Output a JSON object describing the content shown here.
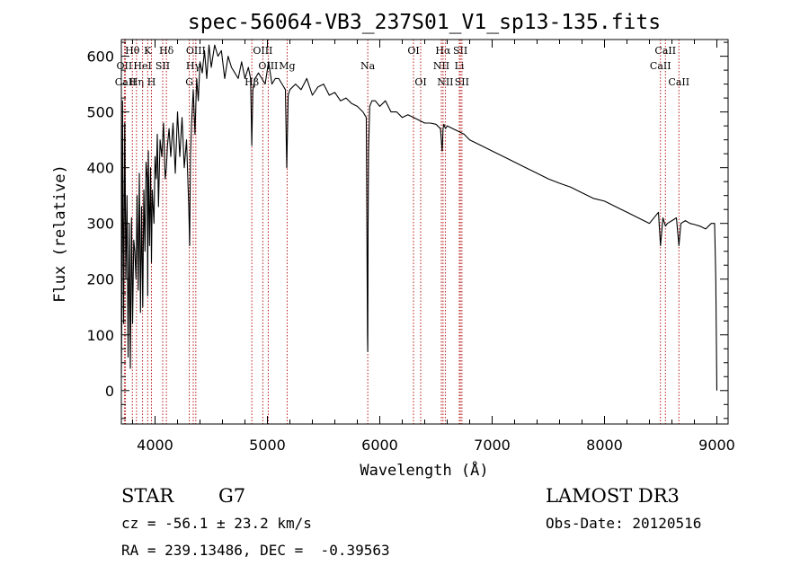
{
  "chart_data": {
    "type": "line",
    "title": "spec-56064-VB3_237S01_V1_sp13-135.fits",
    "xlabel": "Wavelength (Å)",
    "ylabel": "Flux (relative)",
    "xlim": [
      3700,
      9100
    ],
    "ylim": [
      -60,
      630
    ],
    "xticks": [
      4000,
      5000,
      6000,
      7000,
      8000,
      9000
    ],
    "yticks": [
      0,
      100,
      200,
      300,
      400,
      500,
      600
    ],
    "line_color": "#000000",
    "marker_color": "#b00000",
    "series": [
      {
        "name": "spectrum",
        "x": [
          3700,
          3705,
          3710,
          3720,
          3730,
          3740,
          3750,
          3760,
          3770,
          3780,
          3790,
          3800,
          3810,
          3820,
          3830,
          3840,
          3850,
          3860,
          3870,
          3880,
          3890,
          3900,
          3910,
          3920,
          3930,
          3934,
          3940,
          3950,
          3960,
          3968,
          3975,
          3990,
          4000,
          4010,
          4020,
          4030,
          4045,
          4060,
          4075,
          4090,
          4101,
          4110,
          4125,
          4140,
          4160,
          4180,
          4200,
          4220,
          4240,
          4260,
          4280,
          4300,
          4308,
          4315,
          4325,
          4340,
          4355,
          4370,
          4385,
          4400,
          4420,
          4440,
          4460,
          4480,
          4500,
          4530,
          4560,
          4590,
          4620,
          4650,
          4680,
          4710,
          4740,
          4770,
          4800,
          4830,
          4850,
          4861,
          4870,
          4890,
          4920,
          4950,
          4980,
          5010,
          5040,
          5070,
          5100,
          5130,
          5160,
          5172,
          5185,
          5200,
          5250,
          5300,
          5350,
          5400,
          5450,
          5500,
          5550,
          5600,
          5650,
          5700,
          5750,
          5800,
          5850,
          5880,
          5890,
          5893,
          5896,
          5900,
          5910,
          5930,
          5960,
          6000,
          6050,
          6100,
          6150,
          6200,
          6250,
          6300,
          6350,
          6400,
          6450,
          6500,
          6540,
          6555,
          6563,
          6570,
          6585,
          6600,
          6650,
          6700,
          6750,
          6800,
          6900,
          7000,
          7100,
          7200,
          7300,
          7400,
          7500,
          7600,
          7700,
          7800,
          7900,
          8000,
          8100,
          8200,
          8300,
          8400,
          8480,
          8498,
          8520,
          8542,
          8560,
          8600,
          8640,
          8662,
          8680,
          8720,
          8760,
          8800,
          8850,
          8900,
          8950,
          8980,
          8990,
          8995,
          9000
        ],
        "y": [
          30,
          150,
          520,
          120,
          480,
          200,
          350,
          60,
          300,
          40,
          310,
          120,
          270,
          250,
          200,
          350,
          180,
          390,
          140,
          330,
          150,
          360,
          250,
          410,
          380,
          170,
          430,
          260,
          400,
          230,
          360,
          300,
          420,
          380,
          460,
          330,
          450,
          420,
          480,
          380,
          400,
          440,
          470,
          420,
          480,
          390,
          500,
          420,
          490,
          400,
          450,
          330,
          260,
          420,
          480,
          540,
          460,
          560,
          520,
          590,
          570,
          610,
          560,
          620,
          580,
          620,
          600,
          610,
          560,
          600,
          580,
          570,
          560,
          590,
          560,
          580,
          560,
          440,
          540,
          560,
          570,
          560,
          550,
          590,
          550,
          560,
          560,
          550,
          540,
          400,
          530,
          540,
          550,
          540,
          560,
          530,
          545,
          550,
          530,
          535,
          520,
          525,
          515,
          510,
          500,
          490,
          100,
          70,
          300,
          430,
          510,
          520,
          520,
          510,
          520,
          500,
          500,
          490,
          495,
          490,
          485,
          480,
          480,
          478,
          470,
          430,
          470,
          478,
          470,
          475,
          470,
          465,
          460,
          450,
          440,
          430,
          420,
          410,
          400,
          390,
          380,
          372,
          365,
          355,
          345,
          340,
          330,
          320,
          310,
          300,
          320,
          260,
          310,
          295,
          300,
          305,
          310,
          260,
          300,
          305,
          300,
          298,
          295,
          290,
          300,
          300,
          200,
          100,
          0
        ]
      }
    ],
    "markers": [
      {
        "label": "Hθ",
        "x": 3798,
        "row": 0
      },
      {
        "label": "OII",
        "x": 3727,
        "row": 1
      },
      {
        "label": "CaII",
        "x": 3737,
        "row": 2
      },
      {
        "label": "Hη",
        "x": 3835,
        "row": 2
      },
      {
        "label": "HeI",
        "x": 3889,
        "row": 1
      },
      {
        "label": "K",
        "x": 3934,
        "row": 0
      },
      {
        "label": "H",
        "x": 3968,
        "row": 2
      },
      {
        "label": "SII",
        "x": 4068,
        "row": 1
      },
      {
        "label": "Hδ",
        "x": 4101,
        "row": 0
      },
      {
        "label": "OIII",
        "x": 4363,
        "row": 0
      },
      {
        "label": "Hγ",
        "x": 4340,
        "row": 1
      },
      {
        "label": "G",
        "x": 4305,
        "row": 2
      },
      {
        "label": "Hβ",
        "x": 4861,
        "row": 2
      },
      {
        "label": "OIII",
        "x": 4959,
        "row": 0
      },
      {
        "label": "OIII",
        "x": 5007,
        "row": 1
      },
      {
        "label": "Mg",
        "x": 5175,
        "row": 1
      },
      {
        "label": "Na",
        "x": 5893,
        "row": 1
      },
      {
        "label": "OI",
        "x": 6300,
        "row": 0
      },
      {
        "label": "OI",
        "x": 6364,
        "row": 2
      },
      {
        "label": "Hα",
        "x": 6563,
        "row": 0
      },
      {
        "label": "NII",
        "x": 6548,
        "row": 1
      },
      {
        "label": "NII",
        "x": 6583,
        "row": 2
      },
      {
        "label": "Li",
        "x": 6708,
        "row": 1
      },
      {
        "label": "SII",
        "x": 6717,
        "row": 0
      },
      {
        "label": "SII",
        "x": 6731,
        "row": 2
      },
      {
        "label": "CaII",
        "x": 8542,
        "row": 0
      },
      {
        "label": "CaII",
        "x": 8498,
        "row": 1
      },
      {
        "label": "CaII",
        "x": 8662,
        "row": 2
      }
    ]
  },
  "info": {
    "object_class": "STAR",
    "subclass": "G7",
    "redshift_text": "cz = -56.1 ± 23.2 km/s",
    "coords_text": "RA = 239.13486, DEC =  -0.39563",
    "survey": "LAMOST DR3",
    "obs_date_text": "Obs-Date: 20120516"
  }
}
